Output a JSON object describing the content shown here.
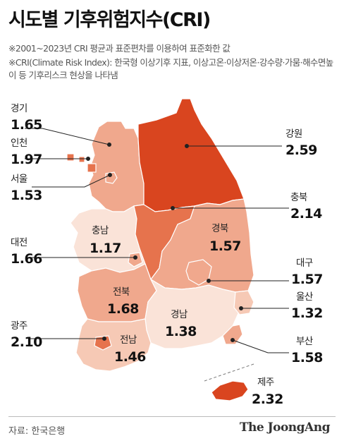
{
  "title": "시도별 기후위험지수(CRI)",
  "notes": [
    "※2001~2023년 CRI 평균과 표준편차를 이용하여 표준화한 값",
    "※CRI(Climate Risk Index): 한국형 이상기후 지표, 이상고온·이상저온·강수량·가뭄·해수면높이 등 기후리스크 현상을 나타냄"
  ],
  "source": "자료: 한국은행",
  "brand": "The JoongAng",
  "colors": {
    "highest": "#d9451f",
    "high": "#e6734d",
    "mid": "#f0a88d",
    "low": "#f6c9b5",
    "lowest": "#fae3d8",
    "border": "#ffffff"
  },
  "regions": [
    {
      "id": "gyeonggi",
      "name": "경기",
      "value": "1.65"
    },
    {
      "id": "incheon",
      "name": "인천",
      "value": "1.97"
    },
    {
      "id": "seoul",
      "name": "서울",
      "value": "1.53"
    },
    {
      "id": "daejeon",
      "name": "대전",
      "value": "1.66"
    },
    {
      "id": "gwangju",
      "name": "광주",
      "value": "2.10"
    },
    {
      "id": "gangwon",
      "name": "강원",
      "value": "2.59"
    },
    {
      "id": "chungbuk",
      "name": "충북",
      "value": "2.14"
    },
    {
      "id": "chungnam",
      "name": "충남",
      "value": "1.17"
    },
    {
      "id": "gyeongbuk",
      "name": "경북",
      "value": "1.57"
    },
    {
      "id": "daegu",
      "name": "대구",
      "value": "1.57"
    },
    {
      "id": "ulsan",
      "name": "울산",
      "value": "1.32"
    },
    {
      "id": "jeonbuk",
      "name": "전북",
      "value": "1.68"
    },
    {
      "id": "gyeongnam",
      "name": "경남",
      "value": "1.38"
    },
    {
      "id": "busan",
      "name": "부산",
      "value": "1.58"
    },
    {
      "id": "jeonnam",
      "name": "전남",
      "value": "1.46"
    },
    {
      "id": "jeju",
      "name": "제주",
      "value": "2.32"
    }
  ]
}
